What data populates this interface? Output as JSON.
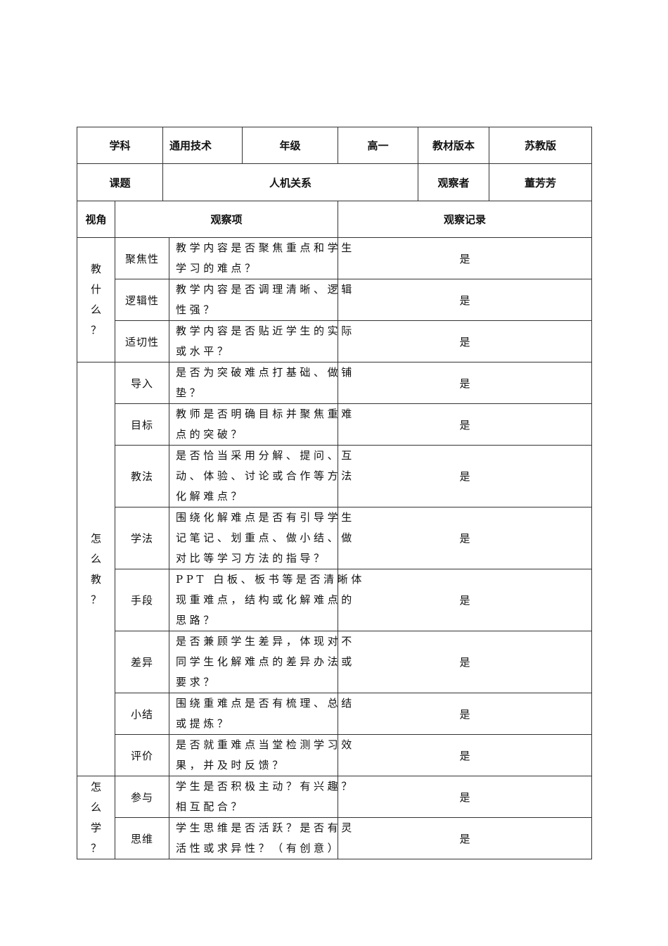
{
  "header": {
    "subject_label": "学科",
    "subject_value": "通用技术",
    "grade_label": "年级",
    "grade_value": "高一",
    "edition_label": "教材版本",
    "edition_value": "苏教版",
    "topic_label": "课题",
    "topic_value": "人机关系",
    "observer_label": "观察者",
    "observer_value": "董芳芳",
    "angle_label": "视角",
    "item_label": "观察项",
    "record_label": "观察记录"
  },
  "groups": [
    {
      "angle": "教什么？",
      "rows": [
        {
          "name": "聚焦性",
          "question": [
            "教学内容是否聚焦重点和学生",
            "学习的难点？"
          ],
          "record": "是",
          "h": 58
        },
        {
          "name": "逻辑性",
          "question": [
            "教学内容是否调理清晰、逻辑",
            "性强？"
          ],
          "record": "是",
          "h": 58
        },
        {
          "name": "适切性",
          "question": [
            "教学内容是否贴近学生的实际",
            "或水平？"
          ],
          "record": "是",
          "h": 58
        }
      ]
    },
    {
      "angle": "怎么教？",
      "rows": [
        {
          "name": "导入",
          "question": [
            "是否为突破难点打基础、做铺",
            "垫？"
          ],
          "record": "是",
          "h": 58
        },
        {
          "name": "目标",
          "question": [
            "教师是否明确目标并聚焦重难",
            "点的突破？"
          ],
          "record": "是",
          "h": 58
        },
        {
          "name": "教法",
          "question": [
            "是否恰当采用分解、提问、互",
            "动、体验、讨论或合作等方法",
            "化解难点？"
          ],
          "record": "是",
          "h": 88
        },
        {
          "name": "学法",
          "question": [
            "围绕化解难点是否有引导学生",
            "记笔记、划重点、做小结、做",
            "对比等学习方法的指导？"
          ],
          "record": "是",
          "h": 87
        },
        {
          "name": "手段",
          "question": [
            "PPT 白板、板书等是否清晰体",
            "现重难点，结构或化解难点的",
            "思路？"
          ],
          "record": "是",
          "h": 86
        },
        {
          "name": "差异",
          "question": [
            "是否兼顾学生差异，体现对不",
            "同学生化解难点的差异办法或",
            "要求？"
          ],
          "record": "是",
          "h": 87
        },
        {
          "name": "小结",
          "question": [
            "围绕重难点是否有梳理、总结",
            "或提炼？"
          ],
          "record": "是",
          "h": 58
        },
        {
          "name": "评价",
          "question": [
            "是否就重难点当堂检测学习效",
            "果，并及时反馈？"
          ],
          "record": "是",
          "h": 58
        }
      ]
    },
    {
      "angle": "怎么学？",
      "rows": [
        {
          "name": "参与",
          "question": [
            "学生是否积极主动？有兴趣？",
            "相互配合？"
          ],
          "record": "是",
          "h": 58
        },
        {
          "name": "思维",
          "question": [
            "学生思维是否活跃？是否有灵",
            "活性或求异性？（有创意）"
          ],
          "record": "是",
          "h": 59
        }
      ]
    }
  ]
}
